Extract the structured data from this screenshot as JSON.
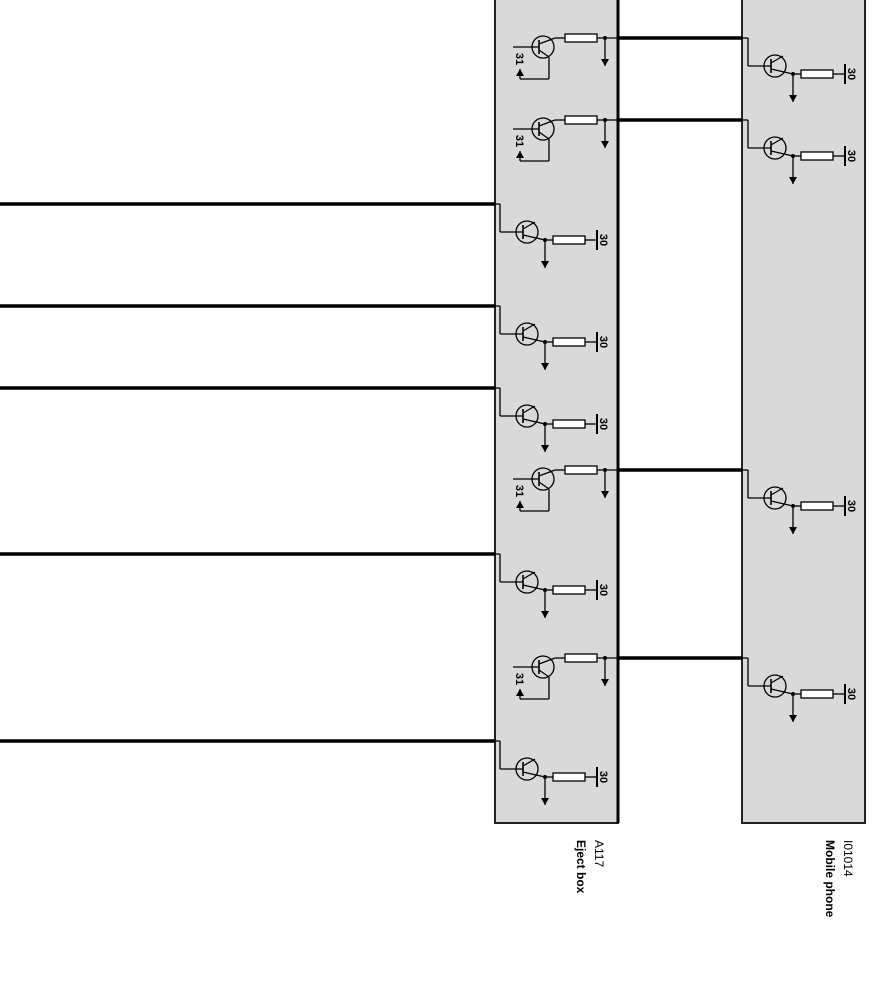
{
  "eject_box": {
    "id": "A117",
    "name": "Eject box",
    "units": [
      {
        "label": "31"
      },
      {
        "label": "31"
      },
      {
        "label": "30"
      },
      {
        "label": "30"
      },
      {
        "label": "30"
      },
      {
        "label": "31"
      },
      {
        "label": "30"
      },
      {
        "label": "31"
      },
      {
        "label": "30"
      }
    ]
  },
  "mobile_phone": {
    "id": "I01014",
    "name": "Mobile phone",
    "units": [
      {
        "label": "30"
      },
      {
        "label": "30"
      },
      {
        "label": "30"
      },
      {
        "label": "30"
      }
    ]
  }
}
